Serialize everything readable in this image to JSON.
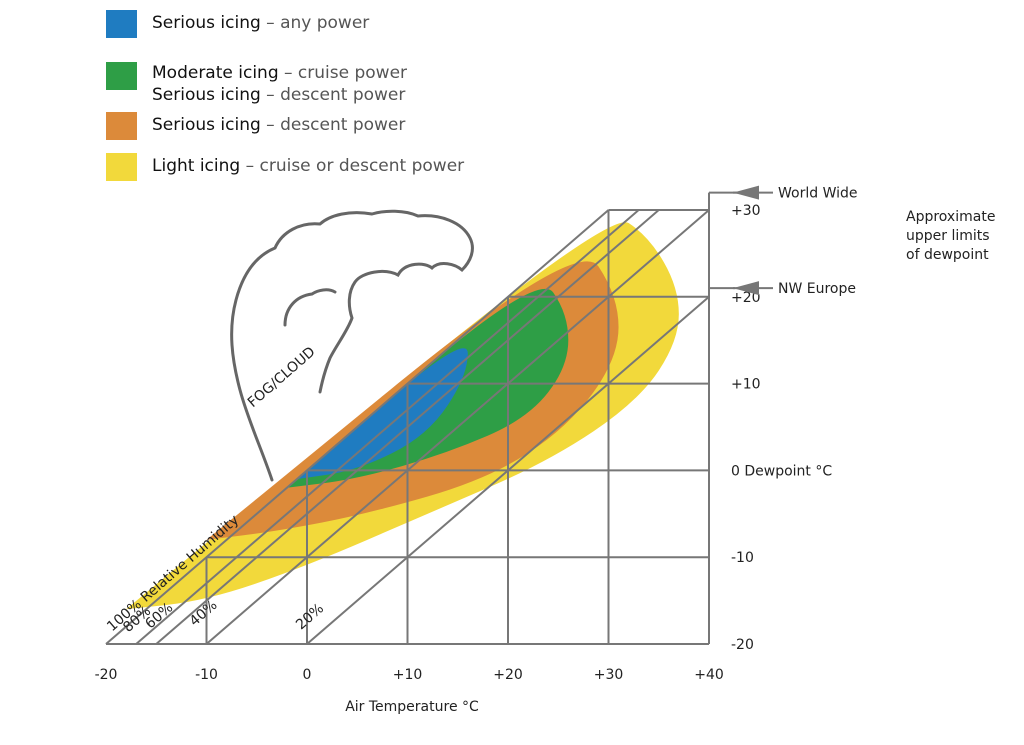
{
  "legend": [
    {
      "bold": "Serious icing",
      "rest": " – any power",
      "color": "#1f7cc1"
    },
    {
      "bold": "Moderate icing",
      "rest": " – cruise power",
      "bold2": "Serious icing",
      "rest2": " – descent power",
      "color": "#2e9e46"
    },
    {
      "bold": "Serious icing",
      "rest": " – descent power",
      "color": "#dc8a3a"
    },
    {
      "bold": "Light icing",
      "rest": " – cruise or descent power",
      "color": "#f2d93b"
    }
  ],
  "chart_data": {
    "type": "area",
    "xlabel": "Air Temperature °C",
    "ylabel": "Dewpoint °C",
    "xlim": [
      -20,
      40
    ],
    "ylim": [
      -20,
      30
    ],
    "x_ticks": [
      "-20",
      "-10",
      "0",
      "+10",
      "+20",
      "+30",
      "+40"
    ],
    "y_ticks": [
      "+30",
      "+20",
      "+10",
      "0 Dewpoint °C",
      "-10",
      "-20"
    ],
    "rh_lines": [
      {
        "label": "100% Relative Humidity",
        "offset": 0
      },
      {
        "label": "80%",
        "offset": 3
      },
      {
        "label": "60%",
        "offset": 5
      },
      {
        "label": "40%",
        "offset": 10
      },
      {
        "label": "20%",
        "offset": 20
      }
    ],
    "annotations": {
      "fog_cloud": "FOG/CLOUD",
      "world_wide": "World Wide",
      "world_wide_dewpoint": 32,
      "nw_europe": "NW Europe",
      "nw_europe_dewpoint": 21,
      "upper_limits_note": [
        "Approximate",
        "upper limits",
        "of dewpoint"
      ]
    },
    "regions": [
      {
        "name": "Light icing",
        "color": "#f2d93b",
        "points": [
          [
            -18,
            -16
          ],
          [
            30,
            30
          ],
          [
            34,
            27
          ],
          [
            37,
            21
          ],
          [
            37,
            15
          ],
          [
            33,
            8
          ],
          [
            24,
            1
          ],
          [
            12,
            -5
          ],
          [
            0,
            -11
          ],
          [
            -10,
            -15
          ],
          [
            -18,
            -16
          ]
        ]
      },
      {
        "name": "Serious icing – descent power",
        "color": "#dc8a3a",
        "points": [
          [
            -10,
            -8
          ],
          [
            27,
            27
          ],
          [
            31,
            20
          ],
          [
            31,
            13
          ],
          [
            26,
            5
          ],
          [
            18,
            -1
          ],
          [
            6,
            -5
          ],
          [
            -3,
            -7
          ],
          [
            -10,
            -8
          ]
        ]
      },
      {
        "name": "Moderate icing / Serious icing",
        "color": "#2e9e46",
        "points": [
          [
            -2,
            -2
          ],
          [
            23,
            23
          ],
          [
            26,
            18
          ],
          [
            26,
            12
          ],
          [
            22,
            6
          ],
          [
            14,
            2
          ],
          [
            5,
            -1
          ],
          [
            -2,
            -2
          ]
        ]
      },
      {
        "name": "Serious icing – any power",
        "color": "#1f7cc1",
        "points": [
          [
            -1,
            -1
          ],
          [
            16,
            16
          ],
          [
            16,
            11
          ],
          [
            12,
            4
          ],
          [
            5,
            0
          ],
          [
            -1,
            -1
          ]
        ]
      }
    ]
  }
}
